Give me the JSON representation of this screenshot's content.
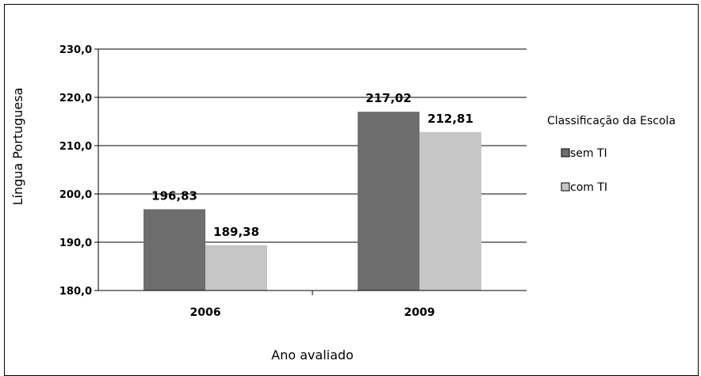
{
  "chart_data": {
    "type": "bar",
    "categories": [
      "2006",
      "2009"
    ],
    "series": [
      {
        "name": "sem TI",
        "values": [
          196.83,
          217.02
        ],
        "color": "#6e6e6e",
        "labels": [
          "196,83",
          "217,02"
        ]
      },
      {
        "name": "com TI",
        "values": [
          189.38,
          212.81
        ],
        "color": "#c6c6c6",
        "labels": [
          "189,38",
          "212,81"
        ]
      }
    ],
    "xlabel": "Ano avaliado",
    "ylabel": "Língua Portuguesa",
    "ylim": [
      180,
      230
    ],
    "yticks": [
      180,
      190,
      200,
      210,
      220,
      230
    ],
    "ytick_labels": [
      "180,0",
      "190,0",
      "200,0",
      "210,0",
      "220,0",
      "230,0"
    ],
    "grid": true,
    "legend": {
      "title": "Classificação da Escola",
      "placement": "right"
    }
  }
}
